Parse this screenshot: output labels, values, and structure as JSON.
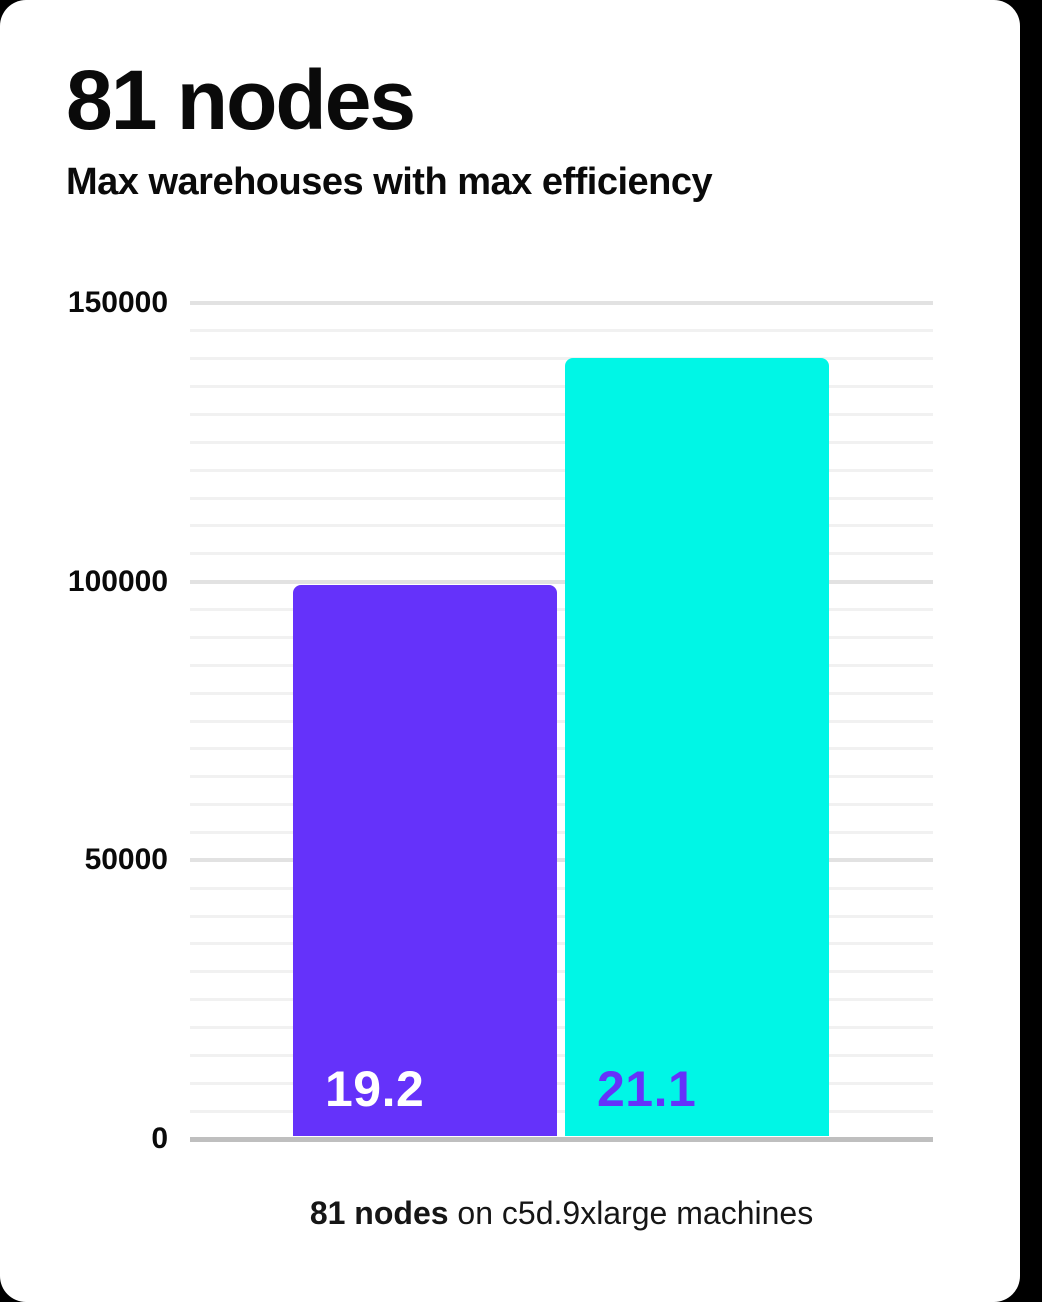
{
  "header": {
    "title": "81 nodes",
    "subtitle": "Max warehouses with max efficiency"
  },
  "caption": {
    "bold": "81 nodes",
    "rest": " on c5d.9xlarge machines"
  },
  "colors": {
    "page_bg": "#000000",
    "card_bg": "#FFFFFF",
    "title_text": "#0A0A0A",
    "tick_text": "#0A0A0A",
    "caption_text": "#161616",
    "grid_minor": "#F1F1F1",
    "grid_major": "#E2E2E2",
    "axis_line": "#BFBFBF",
    "bar1": "#6532FA",
    "bar2": "#00F6E6",
    "bar1_label": "#FFFFFF",
    "bar2_label": "#6532FA"
  },
  "chart_data": {
    "type": "bar",
    "title": "81 nodes",
    "subtitle": "Max warehouses with max efficiency",
    "categories": [
      "19.2",
      "21.1"
    ],
    "series": [
      {
        "name": "max warehouses",
        "values": [
          99400,
          140100
        ]
      }
    ],
    "bar_value_labels": [
      "19.2",
      "21.1"
    ],
    "bar_colors": [
      "#6532FA",
      "#00F6E6"
    ],
    "bar_label_colors": [
      "#FFFFFF",
      "#6532FA"
    ],
    "ylim": [
      0,
      150000
    ],
    "yticks": [
      150000,
      100000,
      50000,
      0
    ],
    "minor_grid_step": 5000,
    "major_grid_step": 50000,
    "grid": "horizontal",
    "legend": "none",
    "caption": "81 nodes on c5d.9xlarge machines"
  }
}
